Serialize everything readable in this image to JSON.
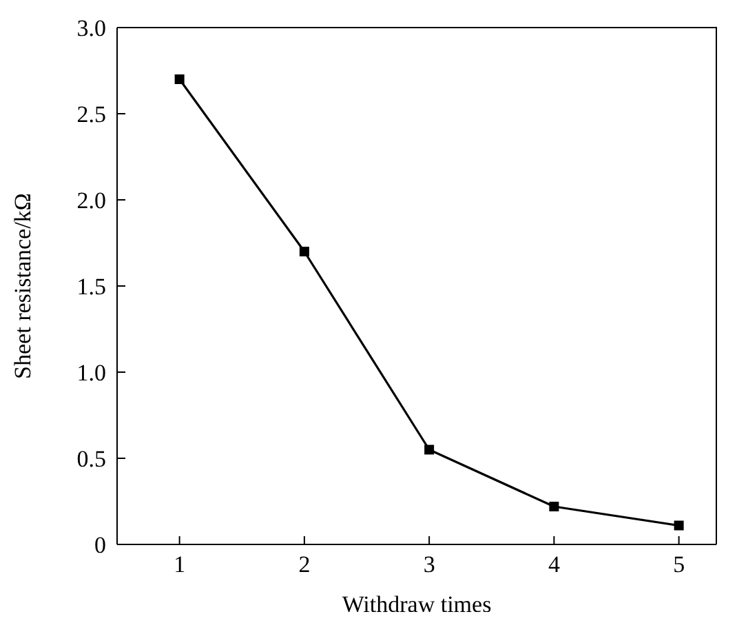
{
  "chart_data": {
    "type": "line",
    "xlabel": "Withdraw times",
    "ylabel": "Sheet resistance/kΩ",
    "x": [
      1,
      2,
      3,
      4,
      5
    ],
    "series": [
      {
        "color": "#000000",
        "values": [
          2.7,
          1.7,
          0.55,
          0.22,
          0.11
        ]
      }
    ],
    "xlim": [
      0.5,
      5.3
    ],
    "xticks": [
      1,
      2,
      3,
      4,
      5
    ],
    "ylim": [
      0,
      3.0
    ],
    "yticks": [
      {
        "value": 0,
        "label": "0"
      },
      {
        "value": 0.5,
        "label": "0.5"
      },
      {
        "value": 1,
        "label": "1.0"
      },
      {
        "value": 1.5,
        "label": "1.5"
      },
      {
        "value": 2,
        "label": "2.0"
      },
      {
        "value": 2.5,
        "label": "2.5"
      },
      {
        "value": 3,
        "label": "3.0"
      }
    ],
    "marker": "square",
    "line_style": "solid"
  }
}
